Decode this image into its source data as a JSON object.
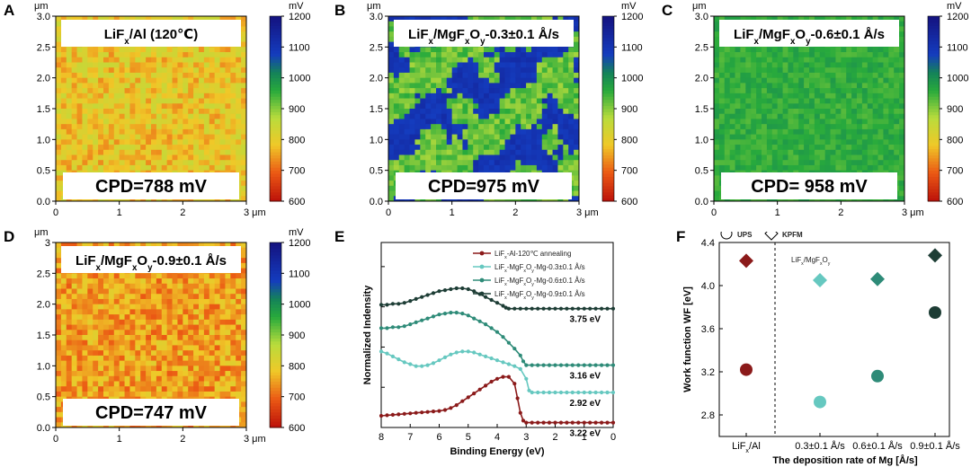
{
  "chart_data": [
    {
      "type": "heatmap",
      "panel": "A",
      "title": "LiFx/Al (120℃)",
      "annotation": "CPD=788 mV",
      "unit": "μm",
      "xlim": [
        0,
        3
      ],
      "ylim": [
        0,
        3
      ],
      "x_ticks": [
        "0",
        "1",
        "2",
        "3 μm"
      ],
      "y_ticks": [
        "0.0",
        "0.5",
        "1.0",
        "1.5",
        "2.0",
        "2.5",
        "3.0"
      ],
      "colorbar": {
        "unit": "mV",
        "range": [
          600,
          1200
        ],
        "ticks": [
          "600",
          "700",
          "800",
          "900",
          "1000",
          "1100",
          "1200"
        ]
      },
      "mean_potential_mV": 788
    },
    {
      "type": "heatmap",
      "panel": "B",
      "title": "LiFx/MgFxOy-0.3±0.1 Å/s",
      "annotation": "CPD=975 mV",
      "unit": "μm",
      "xlim": [
        0,
        3
      ],
      "ylim": [
        0,
        3
      ],
      "x_ticks": [
        "0",
        "1",
        "2",
        "3 μm"
      ],
      "y_ticks": [
        "0.0",
        "0.5",
        "1.0",
        "1.5",
        "2.0",
        "2.5",
        "3.0"
      ],
      "colorbar": {
        "unit": "mV",
        "range": [
          600,
          1200
        ],
        "ticks": [
          "600",
          "700",
          "800",
          "900",
          "1000",
          "1100",
          "1200"
        ]
      },
      "mean_potential_mV": 975
    },
    {
      "type": "heatmap",
      "panel": "C",
      "title": "LiFx/MgFxOy-0.6±0.1 Å/s",
      "annotation": "CPD= 958 mV",
      "unit": "μm",
      "xlim": [
        0,
        3
      ],
      "ylim": [
        0,
        3
      ],
      "x_ticks": [
        "0",
        "1",
        "2",
        "3 μm"
      ],
      "y_ticks": [
        "0.0",
        "0.5",
        "1.0",
        "1.5",
        "2.0",
        "2.5",
        "3.0"
      ],
      "colorbar": {
        "unit": "mV",
        "range": [
          600,
          1200
        ],
        "ticks": [
          "600",
          "700",
          "800",
          "900",
          "1000",
          "1100",
          "1200"
        ]
      },
      "mean_potential_mV": 958
    },
    {
      "type": "heatmap",
      "panel": "D",
      "title": "LiFx/MgFxOy-0.9±0.1 Å/s",
      "annotation": "CPD=747 mV",
      "unit": "μm",
      "xlim": [
        0,
        3
      ],
      "ylim": [
        0,
        3
      ],
      "x_ticks": [
        "0",
        "1",
        "2",
        "3 μm"
      ],
      "y_ticks": [
        "0.0",
        "0.5",
        "1.0",
        "1.5",
        "2.0",
        "2.5",
        "3"
      ],
      "colorbar": {
        "unit": "mV",
        "range": [
          600,
          1200
        ],
        "ticks": [
          "600",
          "700",
          "800",
          "900",
          "1000",
          "1100",
          "1200"
        ]
      },
      "mean_potential_mV": 747
    },
    {
      "type": "line",
      "panel": "E",
      "xlabel": "Binding Energy (eV)",
      "ylabel": "Normalized Indensity",
      "xlim": [
        8,
        0
      ],
      "x_ticks": [
        "8",
        "7",
        "6",
        "5",
        "4",
        "3",
        "2",
        "1",
        "0"
      ],
      "legend_position": "top-right",
      "series": [
        {
          "name": "LiFx-Al-120℃ annealing",
          "color": "#8b1a1a",
          "cutoff_label": "3.22 eV",
          "x": [
            8,
            7.8,
            7.6,
            7.4,
            7.2,
            7,
            6.8,
            6.6,
            6.4,
            6.2,
            6,
            5.8,
            5.6,
            5.4,
            5.2,
            5,
            4.8,
            4.6,
            4.4,
            4.2,
            4,
            3.8,
            3.6,
            3.4,
            3.3,
            3.2,
            3.1,
            3,
            2.8,
            2.6,
            2.4,
            2.2,
            2,
            1.8,
            1.6,
            1.4,
            1.2,
            1,
            0.8,
            0.6,
            0.4,
            0.2,
            0
          ],
          "y": [
            0.12,
            0.125,
            0.13,
            0.135,
            0.14,
            0.145,
            0.15,
            0.155,
            0.16,
            0.165,
            0.17,
            0.18,
            0.2,
            0.23,
            0.27,
            0.31,
            0.35,
            0.39,
            0.43,
            0.47,
            0.5,
            0.52,
            0.52,
            0.45,
            0.3,
            0.15,
            0.07,
            0.05,
            0.05,
            0.05,
            0.05,
            0.05,
            0.05,
            0.05,
            0.05,
            0.05,
            0.05,
            0.05,
            0.05,
            0.05,
            0.05,
            0.05,
            0.05
          ]
        },
        {
          "name": "LiFx-MgFxOy-Mg-0.3±0.1 Å/s",
          "color": "#66c8c0",
          "cutoff_label": "2.92 eV",
          "x": [
            8,
            7.8,
            7.6,
            7.4,
            7.2,
            7,
            6.8,
            6.6,
            6.4,
            6.2,
            6,
            5.8,
            5.6,
            5.4,
            5.2,
            5,
            4.8,
            4.6,
            4.4,
            4.2,
            4,
            3.8,
            3.6,
            3.4,
            3.2,
            3,
            2.9,
            2.8,
            2.6,
            2.4,
            2.2,
            2,
            1.8,
            1.6,
            1.4,
            1.2,
            1,
            0.8,
            0.6,
            0.4,
            0.2,
            0
          ],
          "y": [
            0.78,
            0.76,
            0.73,
            0.7,
            0.67,
            0.65,
            0.63,
            0.63,
            0.64,
            0.66,
            0.69,
            0.72,
            0.75,
            0.77,
            0.78,
            0.78,
            0.77,
            0.75,
            0.73,
            0.71,
            0.69,
            0.67,
            0.65,
            0.63,
            0.6,
            0.5,
            0.38,
            0.36,
            0.36,
            0.36,
            0.36,
            0.36,
            0.36,
            0.36,
            0.36,
            0.36,
            0.36,
            0.36,
            0.36,
            0.36,
            0.36,
            0.36
          ]
        },
        {
          "name": "LiFx-MgFxOy-Mg-0.6±0.1 Å/s",
          "color": "#2e8b78",
          "cutoff_label": "3.16 eV",
          "x": [
            8,
            7.8,
            7.6,
            7.4,
            7.2,
            7,
            6.8,
            6.6,
            6.4,
            6.2,
            6,
            5.8,
            5.6,
            5.4,
            5.2,
            5,
            4.8,
            4.6,
            4.4,
            4.2,
            4,
            3.8,
            3.6,
            3.4,
            3.2,
            3.1,
            3,
            2.8,
            2.6,
            2.4,
            2.2,
            2,
            1.8,
            1.6,
            1.4,
            1.2,
            1,
            0.8,
            0.6,
            0.4,
            0.2,
            0
          ],
          "y": [
            1.02,
            1.02,
            1.03,
            1.03,
            1.04,
            1.06,
            1.08,
            1.1,
            1.12,
            1.14,
            1.16,
            1.17,
            1.18,
            1.18,
            1.17,
            1.15,
            1.12,
            1.09,
            1.06,
            1.02,
            0.98,
            0.93,
            0.87,
            0.81,
            0.74,
            0.68,
            0.64,
            0.64,
            0.64,
            0.64,
            0.64,
            0.64,
            0.64,
            0.64,
            0.64,
            0.64,
            0.64,
            0.64,
            0.64,
            0.64,
            0.64,
            0.64
          ]
        },
        {
          "name": "LiFx-MgFxOy-Mg-0.9±0.1 Å/s",
          "color": "#1d3d35",
          "cutoff_label": "3.75 eV",
          "x": [
            8,
            7.8,
            7.6,
            7.4,
            7.2,
            7,
            6.8,
            6.6,
            6.4,
            6.2,
            6,
            5.8,
            5.6,
            5.4,
            5.2,
            5,
            4.8,
            4.6,
            4.4,
            4.2,
            4,
            3.8,
            3.7,
            3.6,
            3.4,
            3.2,
            3,
            2.8,
            2.6,
            2.4,
            2.2,
            2,
            1.8,
            1.6,
            1.4,
            1.2,
            1,
            0.8,
            0.6,
            0.4,
            0.2,
            0
          ],
          "y": [
            1.26,
            1.26,
            1.27,
            1.27,
            1.28,
            1.3,
            1.32,
            1.34,
            1.36,
            1.38,
            1.4,
            1.41,
            1.42,
            1.43,
            1.43,
            1.42,
            1.4,
            1.37,
            1.34,
            1.31,
            1.28,
            1.25,
            1.23,
            1.22,
            1.22,
            1.22,
            1.22,
            1.22,
            1.22,
            1.22,
            1.22,
            1.22,
            1.22,
            1.22,
            1.22,
            1.22,
            1.22,
            1.22,
            1.22,
            1.22,
            1.22,
            1.22
          ]
        }
      ]
    },
    {
      "type": "scatter",
      "panel": "F",
      "xlabel": "The deposition rate of Mg [Å/s]",
      "ylabel": "Work function WF [eV]",
      "ylim": [
        2.6,
        4.4
      ],
      "y_ticks": [
        "2.8",
        "3.2",
        "3.6",
        "4.0",
        "4.4"
      ],
      "categories": [
        "LiFx/Al",
        "0.3±0.1 Å/s",
        "0.6±0.1 Å/s",
        "0.9±0.1 Å/s"
      ],
      "group_label": "LiFx/MgFxOy",
      "legend": [
        {
          "name": "UPS",
          "marker": "circle"
        },
        {
          "name": "KPFM",
          "marker": "diamond"
        }
      ],
      "colors": [
        "#8b1a1a",
        "#66c8c0",
        "#2e8b78",
        "#1d3d35"
      ],
      "series": [
        {
          "name": "UPS",
          "marker": "circle",
          "values": [
            3.22,
            2.92,
            3.16,
            3.75
          ]
        },
        {
          "name": "KPFM",
          "marker": "diamond",
          "values": [
            4.23,
            4.05,
            4.06,
            4.28
          ]
        }
      ]
    }
  ]
}
